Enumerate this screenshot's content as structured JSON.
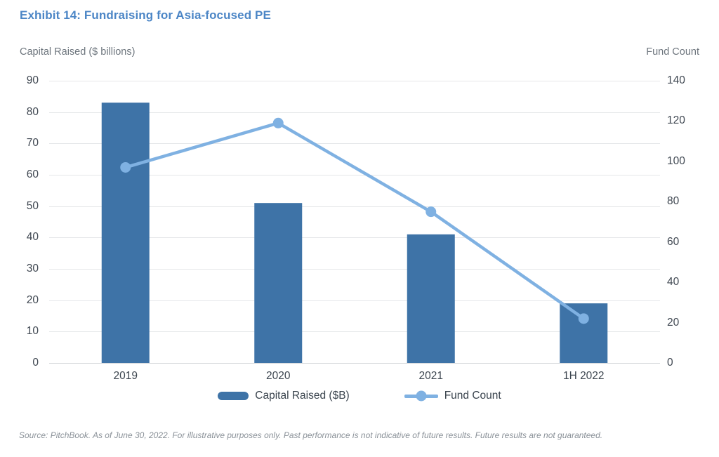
{
  "title": "Exhibit 14: Fundraising for Asia-focused PE",
  "colors": {
    "title": "#4C86C6",
    "bar": "#3E73A7",
    "line": "#7FB1E2",
    "grid": "#E5E7E9",
    "baseline": "#D3D6D9",
    "tick_text": "#3F4751"
  },
  "chart_data": {
    "type": "combo-bar-line",
    "categories": [
      "2019",
      "2020",
      "2021",
      "1H 2022"
    ],
    "series": [
      {
        "name": "Capital Raised ($B)",
        "type": "bar",
        "axis": "left",
        "values": [
          83,
          51,
          41,
          19
        ],
        "color": "#3E73A7"
      },
      {
        "name": "Fund Count",
        "type": "line",
        "axis": "right",
        "values": [
          97,
          119,
          75,
          22
        ],
        "color": "#7FB1E2"
      }
    ],
    "left_axis": {
      "label": "Capital Raised ($ billions)",
      "min": 0,
      "max": 90,
      "step": 10
    },
    "right_axis": {
      "label": "Fund Count",
      "min": 0,
      "max": 140,
      "step": 20
    },
    "grid": true,
    "legend_position": "bottom"
  },
  "source_note": "Source: PitchBook. As of June 30, 2022. For illustrative purposes only. Past performance is not indicative of future results. Future results are not guaranteed."
}
